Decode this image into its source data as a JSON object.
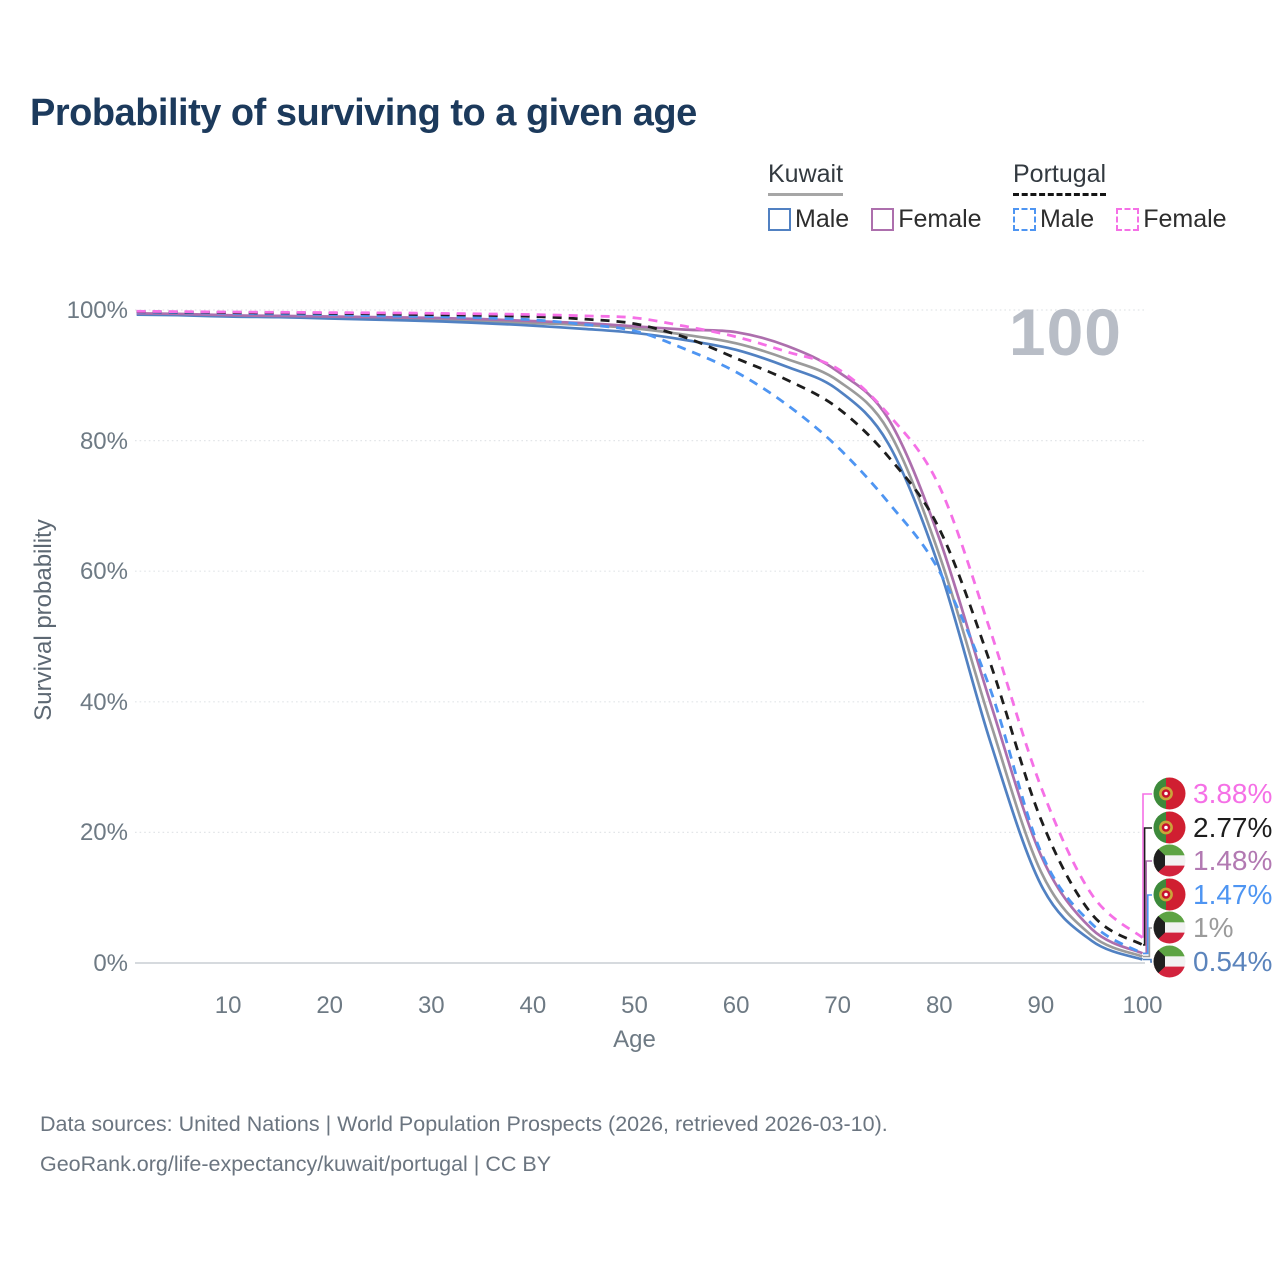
{
  "title": "Probability of surviving to a given age",
  "watermark_age": "100",
  "legend": {
    "kuwait": {
      "label": "Kuwait",
      "male": "Male",
      "female": "Female"
    },
    "portugal": {
      "label": "Portugal",
      "male": "Male",
      "female": "Female"
    }
  },
  "axes": {
    "y_label": "Survival probability",
    "x_label": "Age",
    "y_ticks": [
      "100%",
      "80%",
      "60%",
      "40%",
      "20%",
      "0%"
    ],
    "y_tick_values": [
      100,
      80,
      60,
      40,
      20,
      0
    ],
    "x_ticks": [
      10,
      20,
      30,
      40,
      50,
      60,
      70,
      80,
      90,
      100
    ]
  },
  "chart_data": {
    "type": "line",
    "title": "Probability of surviving to a given age",
    "xlabel": "Age",
    "ylabel": "Survival probability",
    "xlim": [
      0,
      100
    ],
    "ylim": [
      0,
      100
    ],
    "grid": true,
    "x": [
      1,
      5,
      10,
      15,
      20,
      25,
      30,
      35,
      40,
      45,
      50,
      55,
      60,
      65,
      70,
      75,
      80,
      85,
      90,
      95,
      100
    ],
    "series": [
      {
        "id": "kw_total",
        "name": "Kuwait",
        "color": "#9b9b9b",
        "dash": false,
        "values": [
          99.4,
          99.3,
          99.1,
          99.0,
          98.9,
          98.7,
          98.6,
          98.3,
          98.0,
          97.7,
          97.2,
          96.2,
          94.9,
          92.5,
          89.2,
          81.5,
          62.5,
          37,
          14,
          4.2,
          1.0
        ]
      },
      {
        "id": "kw_male",
        "name": "Kuwait Male",
        "color": "#5181c2",
        "dash": false,
        "values": [
          99.3,
          99.2,
          99.0,
          98.9,
          98.7,
          98.5,
          98.3,
          98.0,
          97.6,
          97.1,
          96.5,
          95.4,
          93.9,
          91.3,
          87.8,
          79.5,
          60.5,
          34,
          12,
          3.4,
          0.54
        ]
      },
      {
        "id": "kw_female",
        "name": "Kuwait Female",
        "color": "#ad6fad",
        "dash": false,
        "values": [
          99.5,
          99.4,
          99.2,
          99.1,
          99.0,
          98.9,
          98.8,
          98.6,
          98.3,
          98.0,
          97.5,
          97.0,
          96.6,
          94.5,
          90.6,
          83.3,
          65,
          40,
          16.5,
          5.2,
          1.48
        ]
      },
      {
        "id": "pt_male",
        "name": "Portugal Male",
        "color": "#4e95f2",
        "dash": true,
        "values": [
          99.7,
          99.6,
          99.5,
          99.4,
          99.3,
          99.1,
          99.0,
          98.8,
          98.5,
          97.8,
          96.8,
          94.0,
          90.5,
          85.5,
          79.0,
          70.5,
          60.0,
          42,
          17,
          6,
          1.47
        ]
      },
      {
        "id": "pt_total",
        "name": "Portugal",
        "color": "#1d1d1d",
        "dash": true,
        "values": [
          99.75,
          99.7,
          99.6,
          99.55,
          99.5,
          99.4,
          99.3,
          99.2,
          99.0,
          98.6,
          97.9,
          95.8,
          92.6,
          89.3,
          85.0,
          77.5,
          66.5,
          46,
          22,
          7.5,
          2.77
        ]
      },
      {
        "id": "pt_female",
        "name": "Portugal Female",
        "color": "#f570e6",
        "dash": true,
        "values": [
          99.8,
          99.75,
          99.7,
          99.65,
          99.6,
          99.55,
          99.5,
          99.4,
          99.3,
          99.1,
          98.8,
          97.5,
          95.9,
          93.6,
          91.0,
          84.0,
          73.0,
          51,
          27,
          10.5,
          3.88
        ]
      }
    ],
    "end_labels": [
      {
        "series": "pt_female",
        "flag": "portugal",
        "value": "3.88%",
        "color": "#f570e6"
      },
      {
        "series": "pt_total",
        "flag": "portugal",
        "value": "2.77%",
        "color": "#1d1d1d"
      },
      {
        "series": "kw_female",
        "flag": "kuwait",
        "value": "1.48%",
        "color": "#b279b2"
      },
      {
        "series": "pt_male",
        "flag": "portugal",
        "value": "1.47%",
        "color": "#4e95f2"
      },
      {
        "series": "kw_total",
        "flag": "kuwait",
        "value": "1%",
        "color": "#9b9b9b"
      },
      {
        "series": "kw_male",
        "flag": "kuwait",
        "value": "0.54%",
        "color": "#5b84bc"
      }
    ],
    "flag_colors": {
      "kuwait": {
        "green": "#5da343",
        "white": "#f2f2f2",
        "red": "#d2233d",
        "black": "#1f1f1f"
      },
      "portugal": {
        "green": "#3d8a3b",
        "red": "#d01f31",
        "ring": "#caa53a",
        "center": "#c8102e"
      }
    }
  },
  "footer": {
    "line1": "Data sources: United Nations | World Population Prospects (2026, retrieved 2026-03-10).",
    "line2": "GeoRank.org/life-expectancy/kuwait/portugal | CC BY"
  }
}
